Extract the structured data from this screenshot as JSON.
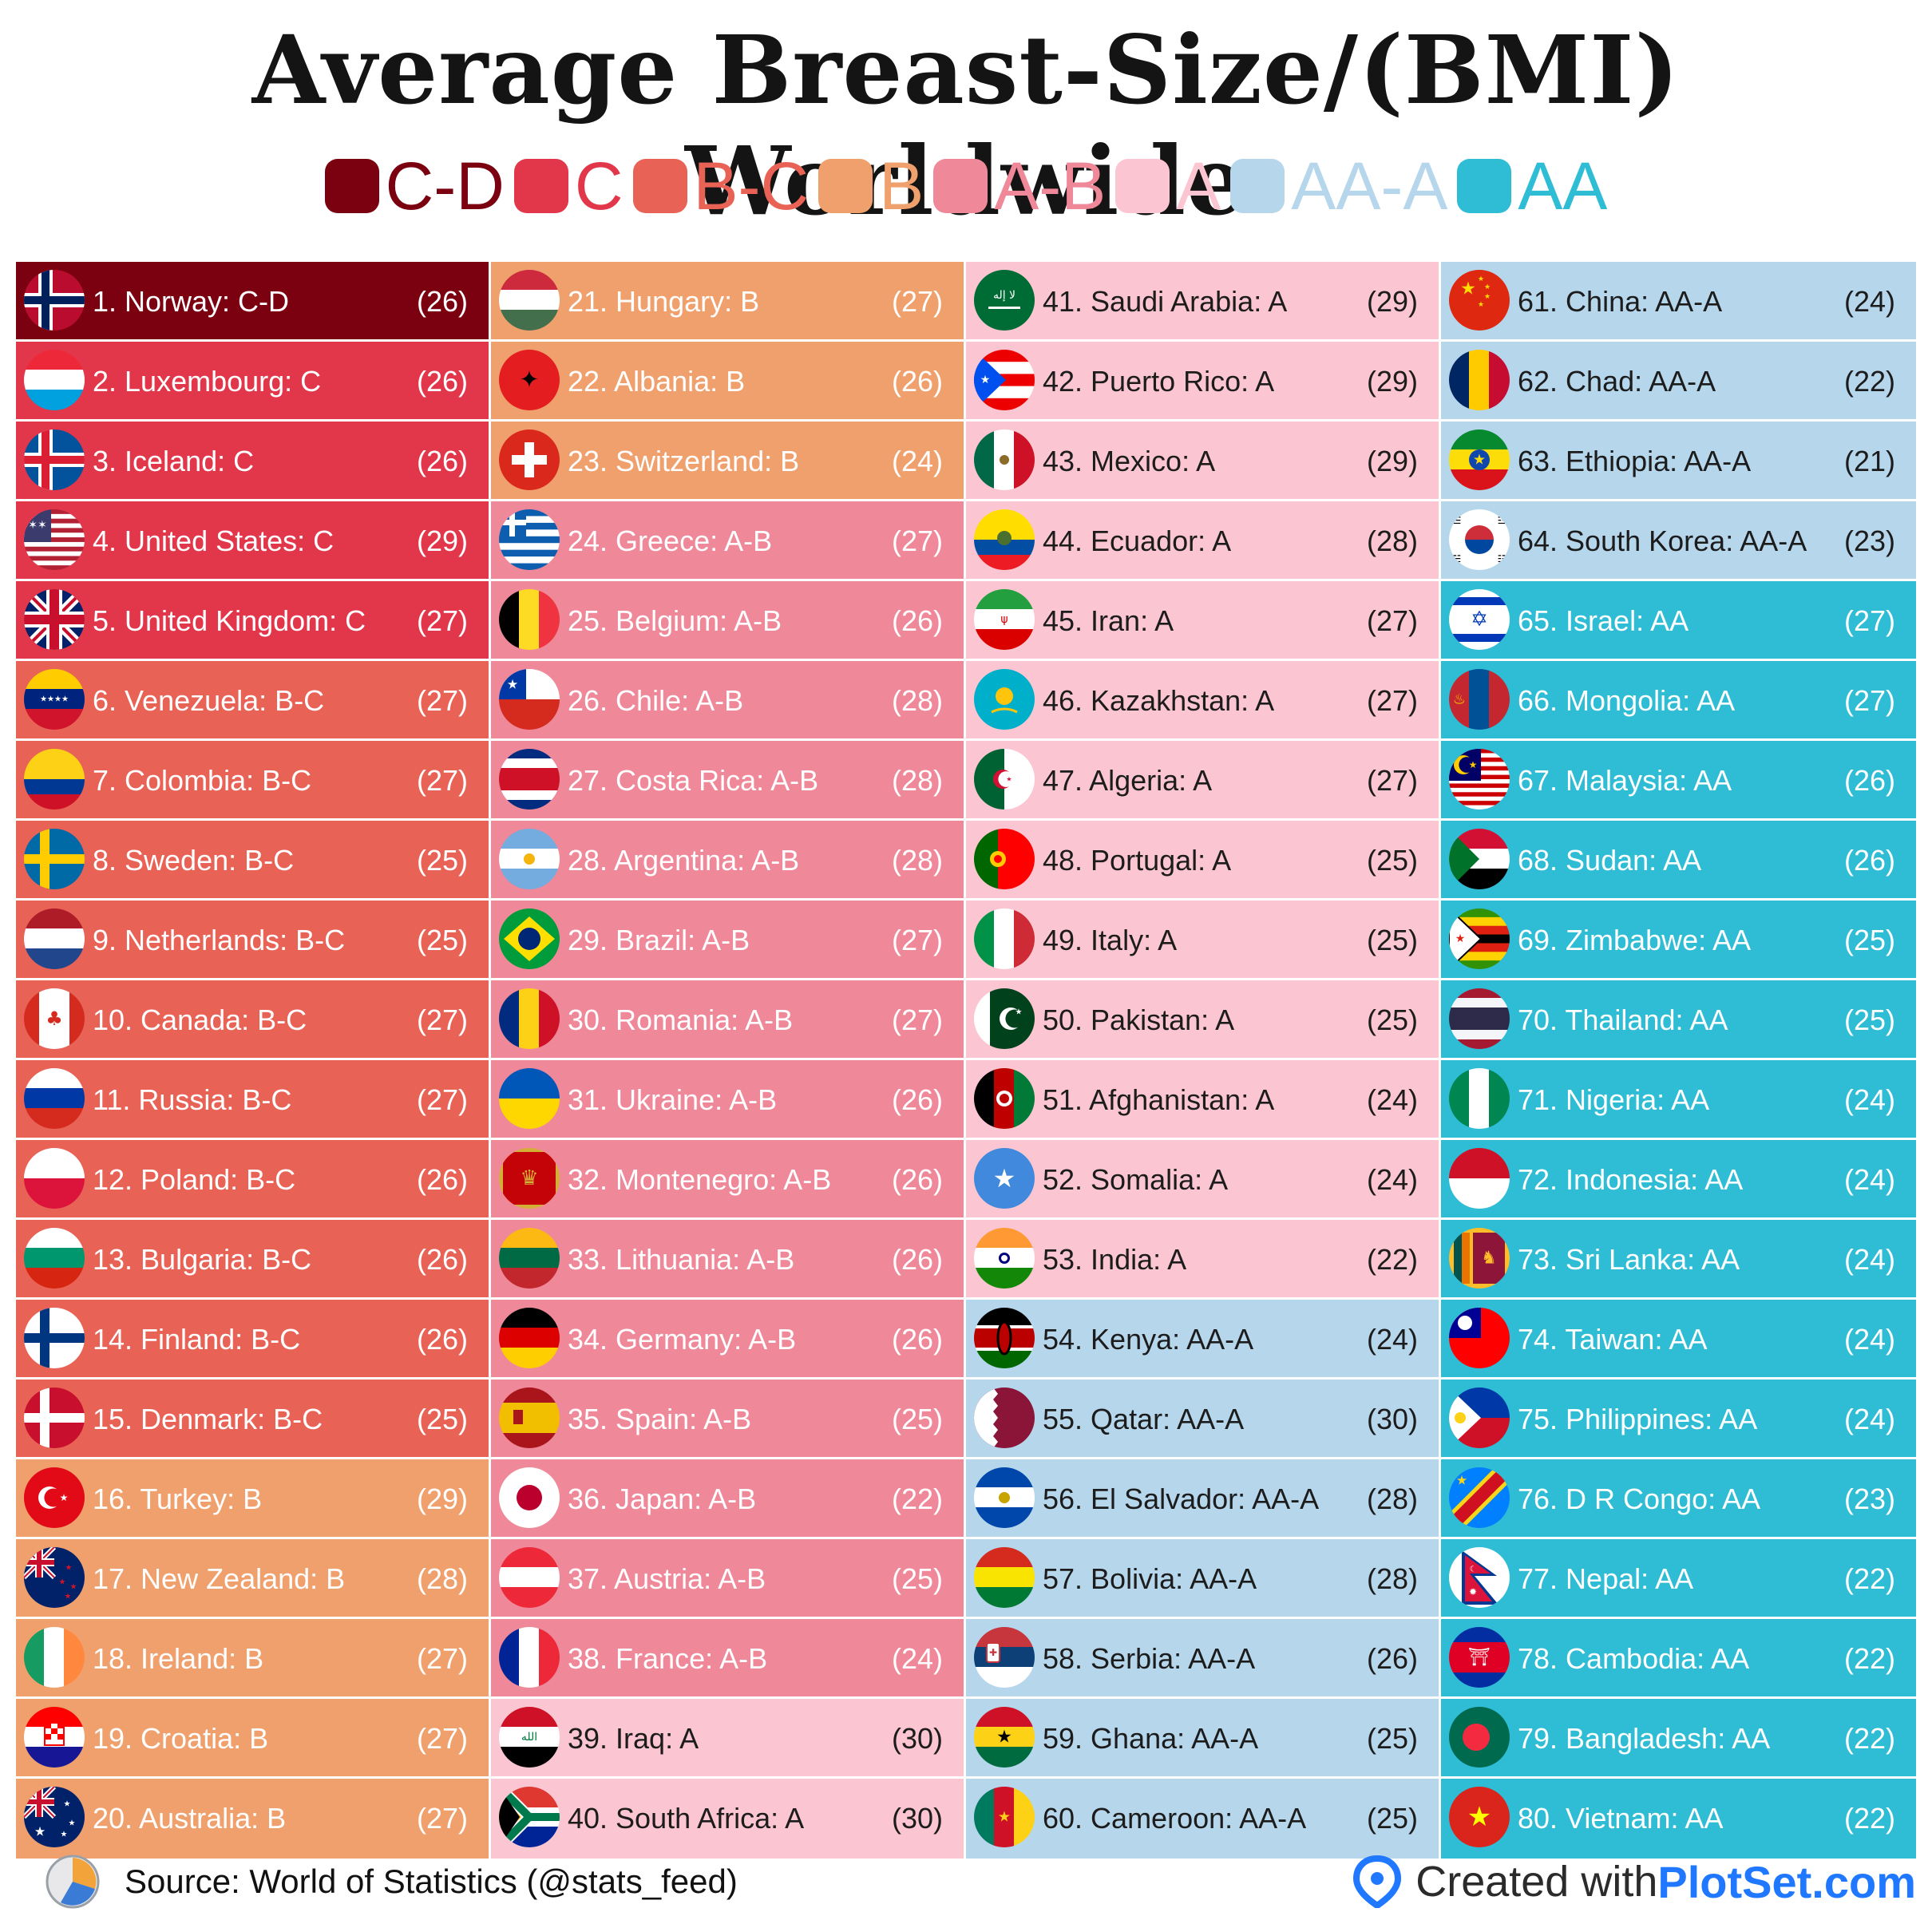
{
  "title": "Average Breast-Size/(BMI) Worldwide",
  "colors": {
    "C-D": "#7b0010",
    "C": "#e2374a",
    "B-C": "#e86256",
    "B": "#f0a06c",
    "A-B": "#ef8898",
    "A": "#fbc6d2",
    "AA-A": "#b6d6ec",
    "AA": "#2fbcd5"
  },
  "legend": [
    {
      "label": "C-D",
      "color": "#7b0010"
    },
    {
      "label": "C",
      "color": "#e2374a"
    },
    {
      "label": "B-C",
      "color": "#e86256"
    },
    {
      "label": "B",
      "color": "#f0a06c"
    },
    {
      "label": "A-B",
      "color": "#ef8898"
    },
    {
      "label": "A",
      "color": "#fbc6d2"
    },
    {
      "label": "AA-A",
      "color": "#b6d6ec"
    },
    {
      "label": "AA",
      "color": "#2fbcd5"
    }
  ],
  "chart_data": {
    "type": "table",
    "columns": [
      "rank",
      "country",
      "cup_size",
      "bmi"
    ],
    "rows": [
      {
        "rank": 1,
        "country": "Norway",
        "size": "C-D",
        "bmi": 26,
        "flag": "norway"
      },
      {
        "rank": 2,
        "country": "Luxembourg",
        "size": "C",
        "bmi": 26,
        "flag": "luxembourg"
      },
      {
        "rank": 3,
        "country": "Iceland",
        "size": "C",
        "bmi": 26,
        "flag": "iceland"
      },
      {
        "rank": 4,
        "country": "United States",
        "size": "C",
        "bmi": 29,
        "flag": "united-states"
      },
      {
        "rank": 5,
        "country": "United Kingdom",
        "size": "C",
        "bmi": 27,
        "flag": "united-kingdom"
      },
      {
        "rank": 6,
        "country": "Venezuela",
        "size": "B-C",
        "bmi": 27,
        "flag": "venezuela"
      },
      {
        "rank": 7,
        "country": "Colombia",
        "size": "B-C",
        "bmi": 27,
        "flag": "colombia"
      },
      {
        "rank": 8,
        "country": "Sweden",
        "size": "B-C",
        "bmi": 25,
        "flag": "sweden"
      },
      {
        "rank": 9,
        "country": "Netherlands",
        "size": "B-C",
        "bmi": 25,
        "flag": "netherlands"
      },
      {
        "rank": 10,
        "country": "Canada",
        "size": "B-C",
        "bmi": 27,
        "flag": "canada"
      },
      {
        "rank": 11,
        "country": "Russia",
        "size": "B-C",
        "bmi": 27,
        "flag": "russia"
      },
      {
        "rank": 12,
        "country": "Poland",
        "size": "B-C",
        "bmi": 26,
        "flag": "poland"
      },
      {
        "rank": 13,
        "country": "Bulgaria",
        "size": "B-C",
        "bmi": 26,
        "flag": "bulgaria"
      },
      {
        "rank": 14,
        "country": "Finland",
        "size": "B-C",
        "bmi": 26,
        "flag": "finland"
      },
      {
        "rank": 15,
        "country": "Denmark",
        "size": "B-C",
        "bmi": 25,
        "flag": "denmark"
      },
      {
        "rank": 16,
        "country": "Turkey",
        "size": "B",
        "bmi": 29,
        "flag": "turkey"
      },
      {
        "rank": 17,
        "country": "New Zealand",
        "size": "B",
        "bmi": 28,
        "flag": "new-zealand"
      },
      {
        "rank": 18,
        "country": "Ireland",
        "size": "B",
        "bmi": 27,
        "flag": "ireland"
      },
      {
        "rank": 19,
        "country": "Croatia",
        "size": "B",
        "bmi": 27,
        "flag": "croatia"
      },
      {
        "rank": 20,
        "country": "Australia",
        "size": "B",
        "bmi": 27,
        "flag": "australia"
      },
      {
        "rank": 21,
        "country": "Hungary",
        "size": "B",
        "bmi": 27,
        "flag": "hungary"
      },
      {
        "rank": 22,
        "country": "Albania",
        "size": "B",
        "bmi": 26,
        "flag": "albania"
      },
      {
        "rank": 23,
        "country": "Switzerland",
        "size": "B",
        "bmi": 24,
        "flag": "switzerland"
      },
      {
        "rank": 24,
        "country": "Greece",
        "size": "A-B",
        "bmi": 27,
        "flag": "greece"
      },
      {
        "rank": 25,
        "country": "Belgium",
        "size": "A-B",
        "bmi": 26,
        "flag": "belgium"
      },
      {
        "rank": 26,
        "country": "Chile",
        "size": "A-B",
        "bmi": 28,
        "flag": "chile"
      },
      {
        "rank": 27,
        "country": "Costa Rica",
        "size": "A-B",
        "bmi": 28,
        "flag": "costa-rica"
      },
      {
        "rank": 28,
        "country": "Argentina",
        "size": "A-B",
        "bmi": 28,
        "flag": "argentina"
      },
      {
        "rank": 29,
        "country": "Brazil",
        "size": "A-B",
        "bmi": 27,
        "flag": "brazil"
      },
      {
        "rank": 30,
        "country": "Romania",
        "size": "A-B",
        "bmi": 27,
        "flag": "romania"
      },
      {
        "rank": 31,
        "country": "Ukraine",
        "size": "A-B",
        "bmi": 26,
        "flag": "ukraine"
      },
      {
        "rank": 32,
        "country": "Montenegro",
        "size": "A-B",
        "bmi": 26,
        "flag": "montenegro"
      },
      {
        "rank": 33,
        "country": "Lithuania",
        "size": "A-B",
        "bmi": 26,
        "flag": "lithuania"
      },
      {
        "rank": 34,
        "country": "Germany",
        "size": "A-B",
        "bmi": 26,
        "flag": "germany"
      },
      {
        "rank": 35,
        "country": "Spain",
        "size": "A-B",
        "bmi": 25,
        "flag": "spain"
      },
      {
        "rank": 36,
        "country": "Japan",
        "size": "A-B",
        "bmi": 22,
        "flag": "japan"
      },
      {
        "rank": 37,
        "country": "Austria",
        "size": "A-B",
        "bmi": 25,
        "flag": "austria"
      },
      {
        "rank": 38,
        "country": "France",
        "size": "A-B",
        "bmi": 24,
        "flag": "france"
      },
      {
        "rank": 39,
        "country": "Iraq",
        "size": "A",
        "bmi": 30,
        "flag": "iraq"
      },
      {
        "rank": 40,
        "country": "South Africa",
        "size": "A",
        "bmi": 30,
        "flag": "south-africa"
      },
      {
        "rank": 41,
        "country": "Saudi Arabia",
        "size": "A",
        "bmi": 29,
        "flag": "saudi-arabia"
      },
      {
        "rank": 42,
        "country": "Puerto Rico",
        "size": "A",
        "bmi": 29,
        "flag": "puerto-rico"
      },
      {
        "rank": 43,
        "country": "Mexico",
        "size": "A",
        "bmi": 29,
        "flag": "mexico"
      },
      {
        "rank": 44,
        "country": "Ecuador",
        "size": "A",
        "bmi": 28,
        "flag": "ecuador"
      },
      {
        "rank": 45,
        "country": "Iran",
        "size": "A",
        "bmi": 27,
        "flag": "iran"
      },
      {
        "rank": 46,
        "country": "Kazakhstan",
        "size": "A",
        "bmi": 27,
        "flag": "kazakhstan"
      },
      {
        "rank": 47,
        "country": "Algeria",
        "size": "A",
        "bmi": 27,
        "flag": "algeria"
      },
      {
        "rank": 48,
        "country": "Portugal",
        "size": "A",
        "bmi": 25,
        "flag": "portugal"
      },
      {
        "rank": 49,
        "country": "Italy",
        "size": "A",
        "bmi": 25,
        "flag": "italy"
      },
      {
        "rank": 50,
        "country": "Pakistan",
        "size": "A",
        "bmi": 25,
        "flag": "pakistan"
      },
      {
        "rank": 51,
        "country": "Afghanistan",
        "size": "A",
        "bmi": 24,
        "flag": "afghanistan"
      },
      {
        "rank": 52,
        "country": "Somalia",
        "size": "A",
        "bmi": 24,
        "flag": "somalia"
      },
      {
        "rank": 53,
        "country": "India",
        "size": "A",
        "bmi": 22,
        "flag": "india"
      },
      {
        "rank": 54,
        "country": "Kenya",
        "size": "AA-A",
        "bmi": 24,
        "flag": "kenya"
      },
      {
        "rank": 55,
        "country": "Qatar",
        "size": "AA-A",
        "bmi": 30,
        "flag": "qatar"
      },
      {
        "rank": 56,
        "country": "El Salvador",
        "size": "AA-A",
        "bmi": 28,
        "flag": "el-salvador"
      },
      {
        "rank": 57,
        "country": "Bolivia",
        "size": "AA-A",
        "bmi": 28,
        "flag": "bolivia"
      },
      {
        "rank": 58,
        "country": "Serbia",
        "size": "AA-A",
        "bmi": 26,
        "flag": "serbia"
      },
      {
        "rank": 59,
        "country": "Ghana",
        "size": "AA-A",
        "bmi": 25,
        "flag": "ghana"
      },
      {
        "rank": 60,
        "country": "Cameroon",
        "size": "AA-A",
        "bmi": 25,
        "flag": "cameroon"
      },
      {
        "rank": 61,
        "country": "China",
        "size": "AA-A",
        "bmi": 24,
        "flag": "china"
      },
      {
        "rank": 62,
        "country": "Chad",
        "size": "AA-A",
        "bmi": 22,
        "flag": "chad"
      },
      {
        "rank": 63,
        "country": "Ethiopia",
        "size": "AA-A",
        "bmi": 21,
        "flag": "ethiopia"
      },
      {
        "rank": 64,
        "country": "South Korea",
        "size": "AA-A",
        "bmi": 23,
        "flag": "south-korea"
      },
      {
        "rank": 65,
        "country": "Israel",
        "size": "AA",
        "bmi": 27,
        "flag": "israel"
      },
      {
        "rank": 66,
        "country": "Mongolia",
        "size": "AA",
        "bmi": 27,
        "flag": "mongolia"
      },
      {
        "rank": 67,
        "country": "Malaysia",
        "size": "AA",
        "bmi": 26,
        "flag": "malaysia"
      },
      {
        "rank": 68,
        "country": "Sudan",
        "size": "AA",
        "bmi": 26,
        "flag": "sudan"
      },
      {
        "rank": 69,
        "country": "Zimbabwe",
        "size": "AA",
        "bmi": 25,
        "flag": "zimbabwe"
      },
      {
        "rank": 70,
        "country": "Thailand",
        "size": "AA",
        "bmi": 25,
        "flag": "thailand"
      },
      {
        "rank": 71,
        "country": "Nigeria",
        "size": "AA",
        "bmi": 24,
        "flag": "nigeria"
      },
      {
        "rank": 72,
        "country": "Indonesia",
        "size": "AA",
        "bmi": 24,
        "flag": "indonesia"
      },
      {
        "rank": 73,
        "country": "Sri Lanka",
        "size": "AA",
        "bmi": 24,
        "flag": "sri-lanka"
      },
      {
        "rank": 74,
        "country": "Taiwan",
        "size": "AA",
        "bmi": 24,
        "flag": "taiwan"
      },
      {
        "rank": 75,
        "country": "Philippines",
        "size": "AA",
        "bmi": 24,
        "flag": "philippines"
      },
      {
        "rank": 76,
        "country": "D R Congo",
        "size": "AA",
        "bmi": 23,
        "flag": "dr-congo"
      },
      {
        "rank": 77,
        "country": "Nepal",
        "size": "AA",
        "bmi": 22,
        "flag": "nepal"
      },
      {
        "rank": 78,
        "country": "Cambodia",
        "size": "AA",
        "bmi": 22,
        "flag": "cambodia"
      },
      {
        "rank": 79,
        "country": "Bangladesh",
        "size": "AA",
        "bmi": 22,
        "flag": "bangladesh"
      },
      {
        "rank": 80,
        "country": "Vietnam",
        "size": "AA",
        "bmi": 22,
        "flag": "vietnam"
      }
    ]
  },
  "footer": {
    "source": "Source: World of Statistics (@stats_feed)",
    "created_with": "Created with ",
    "brand": "PlotSet.com"
  }
}
